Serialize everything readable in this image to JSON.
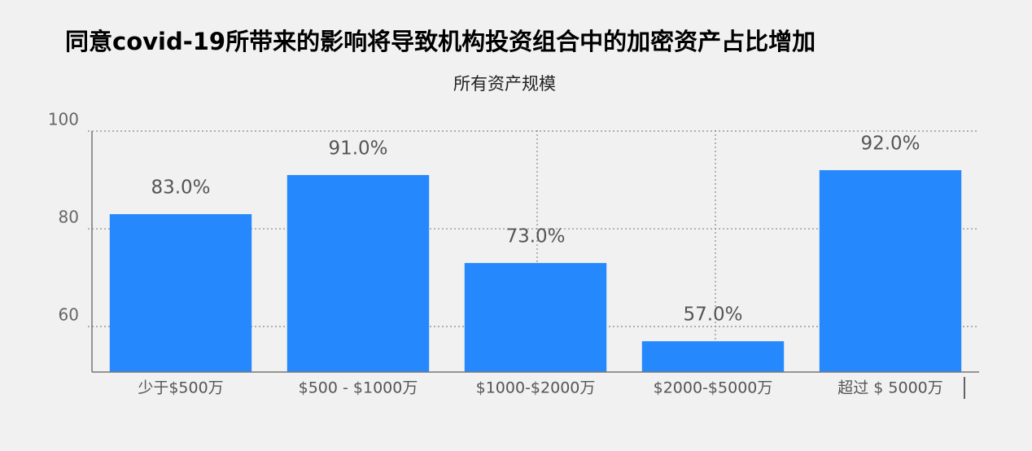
{
  "chart_data": {
    "type": "bar",
    "title": "同意covid-19所带来的影响将导致机构投资组合中的加密资产占比增加",
    "subtitle": "所有资产规模",
    "categories": [
      "少于$500万",
      "$500 - $1000万",
      "$1000-$2000万",
      "$2000-$5000万",
      "超过 $ 5000万"
    ],
    "values": [
      83.0,
      91.0,
      73.0,
      57.0,
      92.0
    ],
    "value_labels": [
      "83.0%",
      "91.0%",
      "73.0%",
      "57.0%",
      "92.0%"
    ],
    "color": "#2589fd",
    "ylim": [
      50.7,
      100
    ],
    "yticks": [
      100,
      80,
      60
    ],
    "grid": true
  }
}
